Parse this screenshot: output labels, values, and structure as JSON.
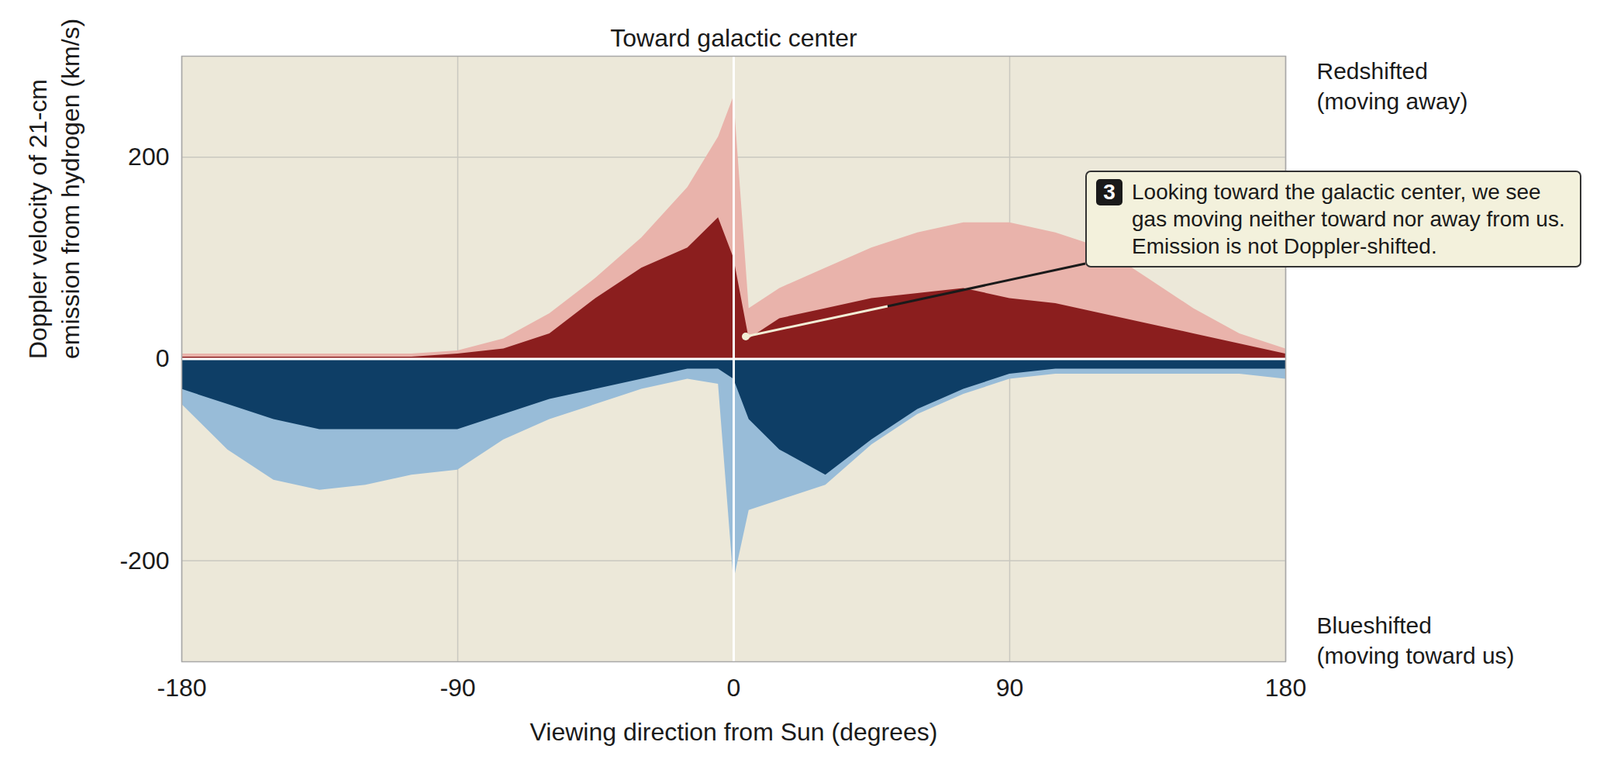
{
  "chart_data": {
    "type": "area",
    "title": "Toward galactic center",
    "x_label": "Viewing direction from Sun (degrees)",
    "y_label": "Doppler velocity of 21-cm emission from hydrogen (km/s)",
    "upper_label": "Redshifted (moving away)",
    "lower_label": "Blueshifted (moving toward us)",
    "callout": {
      "number": 3,
      "text": "Looking toward the galactic center, we see gas moving neither toward nor away from us. Emission is not Doppler-shifted."
    },
    "x": [
      -180,
      -165,
      -150,
      -135,
      -120,
      -105,
      -90,
      -75,
      -60,
      -45,
      -30,
      -15,
      -5,
      0,
      5,
      15,
      30,
      45,
      60,
      75,
      90,
      105,
      120,
      135,
      150,
      165,
      180
    ],
    "series": [
      {
        "color": "#e9b3ab",
        "values": [
          5,
          5,
          5,
          5,
          5,
          5,
          8,
          20,
          45,
          80,
          120,
          170,
          220,
          260,
          50,
          70,
          90,
          110,
          125,
          135,
          135,
          125,
          110,
          80,
          50,
          25,
          10
        ]
      },
      {
        "color": "#8b1e1e",
        "values": [
          2,
          2,
          2,
          2,
          2,
          2,
          5,
          10,
          25,
          60,
          90,
          110,
          140,
          100,
          20,
          40,
          50,
          60,
          65,
          70,
          60,
          55,
          45,
          35,
          25,
          15,
          5
        ]
      },
      {
        "color": "#98bcd8",
        "values": [
          -45,
          -90,
          -120,
          -130,
          -125,
          -115,
          -110,
          -80,
          -60,
          -45,
          -30,
          -20,
          -25,
          -220,
          -150,
          -140,
          -125,
          -85,
          -55,
          -35,
          -20,
          -15,
          -15,
          -15,
          -15,
          -15,
          -20
        ]
      },
      {
        "color": "#0e3e66",
        "values": [
          -30,
          -45,
          -60,
          -70,
          -70,
          -70,
          -70,
          -55,
          -40,
          -30,
          -20,
          -10,
          -10,
          -20,
          -60,
          -90,
          -115,
          -80,
          -50,
          -30,
          -15,
          -10,
          -10,
          -10,
          -10,
          -10,
          -10
        ]
      }
    ],
    "xlim": [
      -180,
      180
    ],
    "xticks": [
      -180,
      -90,
      0,
      90,
      180
    ],
    "ylim": [
      -300,
      300
    ],
    "yticks": [
      -200,
      0,
      200
    ],
    "grid": true
  }
}
